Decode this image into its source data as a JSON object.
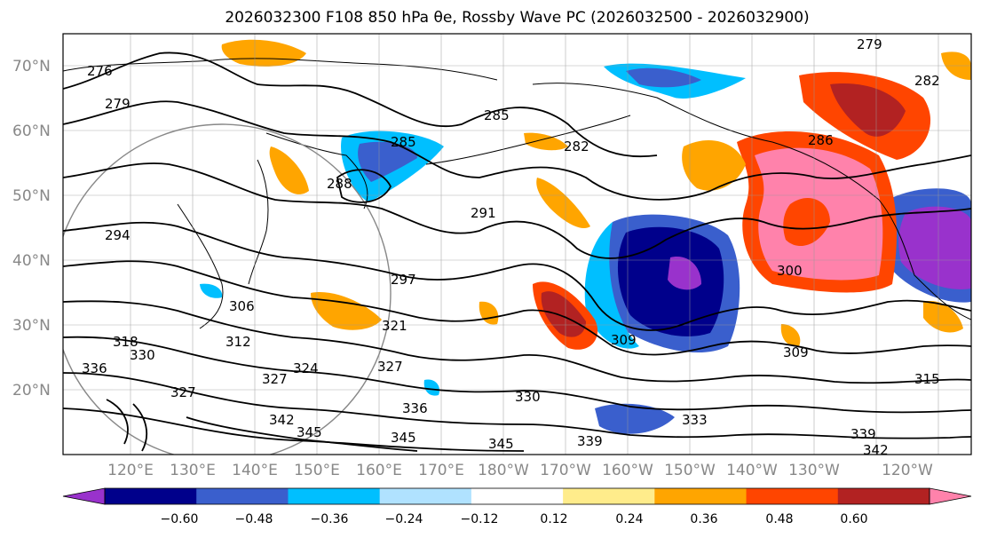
{
  "title": "2026032300 F108 850 hPa θe, Rossby Wave PC (2026032500 - 2026032900)",
  "map": {
    "lat_ticks": [
      "70°N",
      "60°N",
      "50°N",
      "40°N",
      "30°N",
      "20°N"
    ],
    "lon_ticks": [
      "120°E",
      "130°E",
      "140°E",
      "150°E",
      "160°E",
      "170°E",
      "180°W",
      "170°W",
      "160°W",
      "150°W",
      "140°W",
      "130°W",
      "120°W"
    ],
    "contour_labels": [
      "276",
      "279",
      "279",
      "282",
      "285",
      "285",
      "288",
      "291",
      "294",
      "297",
      "300",
      "306",
      "309",
      "309",
      "312",
      "315",
      "318",
      "321",
      "324",
      "327",
      "327",
      "327",
      "330",
      "330",
      "333",
      "336",
      "336",
      "339",
      "339",
      "342",
      "342",
      "345",
      "345",
      "345",
      "286",
      "282"
    ]
  },
  "colorbar": {
    "tick_labels": [
      "−0.60",
      "−0.48",
      "−0.36",
      "−0.24",
      "−0.12",
      "0.12",
      "0.24",
      "0.36",
      "0.48",
      "0.60"
    ],
    "colors": [
      "#9932cc",
      "#00008b",
      "#3a5fcd",
      "#00bfff",
      "#b0e2ff",
      "#ffffff",
      "#ffec8b",
      "#ffa500",
      "#ff4500",
      "#b22222",
      "#ff82ab"
    ]
  }
}
